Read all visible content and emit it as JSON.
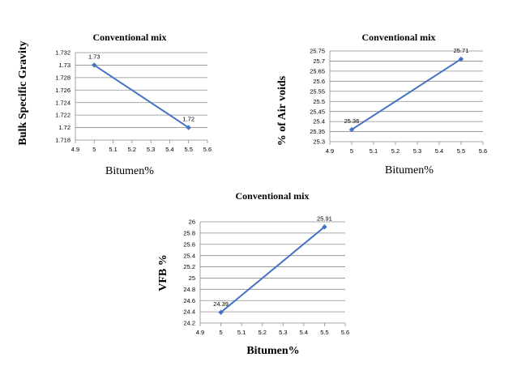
{
  "chart_data": [
    {
      "type": "line",
      "title": "Conventional mix",
      "xlabel": "Bitumen%",
      "ylabel": "Bulk Specific Gravity",
      "xlim": [
        4.9,
        5.6
      ],
      "xticks": [
        "4.9",
        "5",
        "5.1",
        "5.2",
        "5.3",
        "5.4",
        "5.5",
        "5.6"
      ],
      "ylim": [
        1.718,
        1.732
      ],
      "yticks": [
        "1.718",
        "1.72",
        "1.722",
        "1.724",
        "1.726",
        "1.728",
        "1.73",
        "1.732"
      ],
      "grid": "horizontal",
      "legend": "none",
      "color": "#4472c4",
      "series": [
        {
          "x": [
            5,
            5.5
          ],
          "y": [
            1.73,
            1.72
          ],
          "labels": [
            "1.73",
            "1.72"
          ]
        }
      ]
    },
    {
      "type": "line",
      "title": "Conventional mix",
      "xlabel": "Bitumen%",
      "ylabel": "% of Air voids",
      "xlim": [
        4.9,
        5.6
      ],
      "xticks": [
        "4.9",
        "5",
        "5.1",
        "5.2",
        "5.3",
        "5.4",
        "5.5",
        "5.6"
      ],
      "ylim": [
        25.3,
        25.75
      ],
      "yticks": [
        "25.3",
        "25.35",
        "25.4",
        "25.45",
        "25.5",
        "25.55",
        "25.6",
        "25.65",
        "25.7",
        "25.75"
      ],
      "grid": "horizontal",
      "legend": "none",
      "color": "#4472c4",
      "series": [
        {
          "x": [
            5,
            5.5
          ],
          "y": [
            25.36,
            25.71
          ],
          "labels": [
            "25.36",
            "25.71"
          ]
        }
      ]
    },
    {
      "type": "line",
      "title": "Conventional mix",
      "xlabel": "Bitumen%",
      "ylabel": "VFB %",
      "xlim": [
        4.9,
        5.6
      ],
      "xticks": [
        "4.9",
        "5",
        "5.1",
        "5.2",
        "5.3",
        "5.4",
        "5.5",
        "5.6"
      ],
      "ylim": [
        24.2,
        26
      ],
      "yticks": [
        "24.2",
        "24.4",
        "24.6",
        "24.8",
        "25",
        "25.2",
        "25.4",
        "25.6",
        "25.8",
        "26"
      ],
      "grid": "horizontal",
      "legend": "none",
      "color": "#4472c4",
      "series": [
        {
          "x": [
            5,
            5.5
          ],
          "y": [
            24.39,
            25.91
          ],
          "labels": [
            "24.39",
            "25.91"
          ]
        }
      ]
    }
  ]
}
